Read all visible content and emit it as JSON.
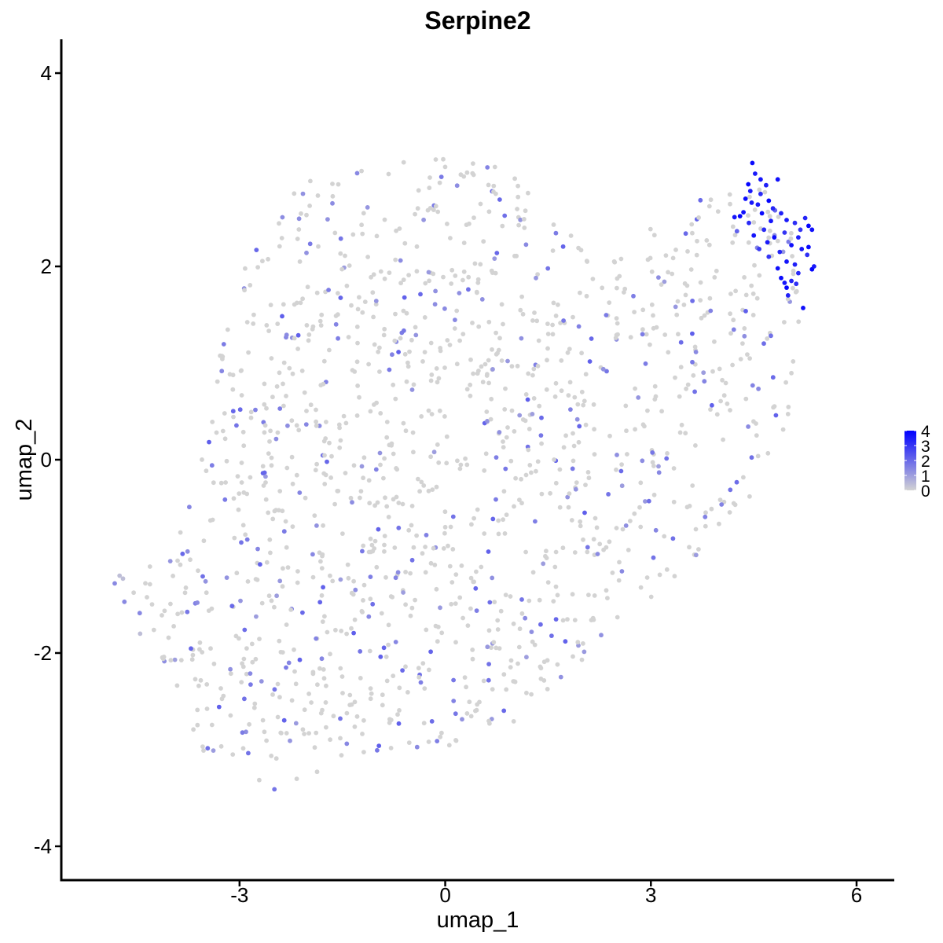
{
  "chart_data": {
    "type": "scatter",
    "title": "Serpine2",
    "xlabel": "umap_1",
    "ylabel": "umap_2",
    "xlim": [
      -5.6,
      6.55
    ],
    "ylim": [
      -4.35,
      4.35
    ],
    "x_ticks": [
      -3,
      0,
      3,
      6
    ],
    "y_ticks": [
      -4,
      -2,
      0,
      2,
      4
    ],
    "x_tick_labels": [
      "-3",
      "0",
      "3",
      "6"
    ],
    "y_tick_labels": [
      "-4",
      "-2",
      "0",
      "2",
      "4"
    ],
    "grid": false,
    "colorbar": {
      "title": "",
      "range": [
        0,
        4
      ],
      "ticks": [
        0,
        1,
        2,
        3,
        4
      ],
      "tick_labels": [
        "0",
        "1",
        "2",
        "3",
        "4"
      ],
      "low_color": "#d3d3d3",
      "high_color": "#0000ff",
      "position": "right"
    },
    "point_count_note": "approx. 1500 cells; bulk points are low/zero expression, a high-expression cluster near umap_1 4.3–5.3, umap_2 1.6–3.1",
    "highlight_points": [
      {
        "x": 4.48,
        "y": 3.07,
        "value": 3.8
      },
      {
        "x": 4.52,
        "y": 2.96,
        "value": 3.5
      },
      {
        "x": 4.42,
        "y": 2.85,
        "value": 3.9
      },
      {
        "x": 4.6,
        "y": 2.9,
        "value": 3.6
      },
      {
        "x": 4.68,
        "y": 2.84,
        "value": 3.4
      },
      {
        "x": 4.85,
        "y": 2.9,
        "value": 3.7
      },
      {
        "x": 4.38,
        "y": 2.7,
        "value": 3.8
      },
      {
        "x": 4.47,
        "y": 2.66,
        "value": 3.6
      },
      {
        "x": 4.56,
        "y": 2.64,
        "value": 3.5
      },
      {
        "x": 4.72,
        "y": 2.68,
        "value": 3.9
      },
      {
        "x": 4.78,
        "y": 2.6,
        "value": 3.3
      },
      {
        "x": 4.35,
        "y": 2.56,
        "value": 3.7
      },
      {
        "x": 4.3,
        "y": 2.52,
        "value": 3.9
      },
      {
        "x": 4.22,
        "y": 2.51,
        "value": 3.6
      },
      {
        "x": 4.43,
        "y": 2.45,
        "value": 3.2
      },
      {
        "x": 4.62,
        "y": 2.55,
        "value": 3.8
      },
      {
        "x": 4.9,
        "y": 2.55,
        "value": 3.4
      },
      {
        "x": 4.98,
        "y": 2.48,
        "value": 3.5
      },
      {
        "x": 5.1,
        "y": 2.45,
        "value": 3.1
      },
      {
        "x": 5.25,
        "y": 2.5,
        "value": 3.3
      },
      {
        "x": 5.3,
        "y": 2.42,
        "value": 3.9
      },
      {
        "x": 5.35,
        "y": 2.38,
        "value": 3.7
      },
      {
        "x": 4.5,
        "y": 2.32,
        "value": 3.6
      },
      {
        "x": 4.65,
        "y": 2.38,
        "value": 3.2
      },
      {
        "x": 4.8,
        "y": 2.3,
        "value": 3.8
      },
      {
        "x": 4.95,
        "y": 2.35,
        "value": 3.0
      },
      {
        "x": 5.15,
        "y": 2.3,
        "value": 3.4
      },
      {
        "x": 5.05,
        "y": 2.22,
        "value": 3.7
      },
      {
        "x": 4.7,
        "y": 2.25,
        "value": 3.5
      },
      {
        "x": 4.88,
        "y": 2.15,
        "value": 3.3
      },
      {
        "x": 5.2,
        "y": 2.18,
        "value": 3.6
      },
      {
        "x": 5.28,
        "y": 2.12,
        "value": 3.1
      },
      {
        "x": 5.3,
        "y": 2.2,
        "value": 3.8
      },
      {
        "x": 4.72,
        "y": 2.1,
        "value": 3.0
      },
      {
        "x": 4.98,
        "y": 2.05,
        "value": 3.6
      },
      {
        "x": 5.1,
        "y": 2.02,
        "value": 3.4
      },
      {
        "x": 4.85,
        "y": 1.98,
        "value": 3.7
      },
      {
        "x": 5.35,
        "y": 1.97,
        "value": 3.9
      },
      {
        "x": 5.38,
        "y": 2.0,
        "value": 3.5
      },
      {
        "x": 5.15,
        "y": 1.93,
        "value": 3.2
      },
      {
        "x": 4.9,
        "y": 1.88,
        "value": 3.8
      },
      {
        "x": 4.95,
        "y": 1.83,
        "value": 3.6
      },
      {
        "x": 5.05,
        "y": 1.85,
        "value": 3.3
      },
      {
        "x": 4.98,
        "y": 1.78,
        "value": 3.9
      },
      {
        "x": 5.0,
        "y": 1.7,
        "value": 3.4
      },
      {
        "x": 5.12,
        "y": 1.82,
        "value": 3.1
      },
      {
        "x": 5.22,
        "y": 1.57,
        "value": 3.7
      },
      {
        "x": 4.45,
        "y": 2.78,
        "value": 3.5
      },
      {
        "x": 4.6,
        "y": 2.75,
        "value": 3.2
      },
      {
        "x": 4.75,
        "y": 2.47,
        "value": 3.6
      },
      {
        "x": 4.58,
        "y": 2.18,
        "value": 2.9
      },
      {
        "x": 5.18,
        "y": 2.38,
        "value": 3.0
      }
    ]
  }
}
